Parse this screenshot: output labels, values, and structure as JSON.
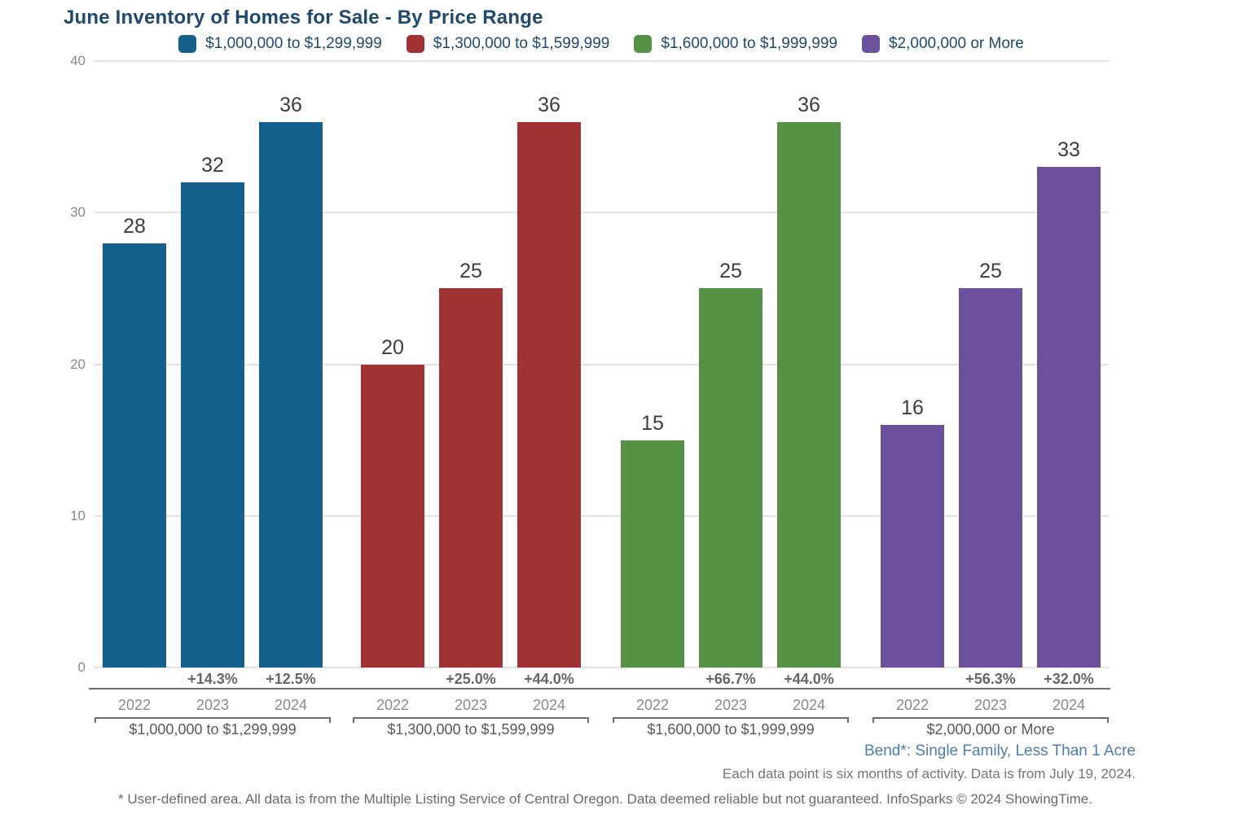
{
  "title": "June Inventory of Homes for Sale - By Price Range",
  "chart_data": {
    "type": "bar",
    "title": "June Inventory of Homes for Sale - By Price Range",
    "categories": [
      "2022",
      "2023",
      "2024"
    ],
    "series": [
      {
        "name": "$1,000,000 to $1,299,999",
        "color": "#15618E",
        "values": [
          28,
          32,
          36
        ],
        "pct_change": [
          "",
          "+14.3%",
          "+12.5%"
        ]
      },
      {
        "name": "$1,300,000 to $1,599,999",
        "color": "#A13234",
        "values": [
          20,
          25,
          36
        ],
        "pct_change": [
          "",
          "+25.0%",
          "+44.0%"
        ]
      },
      {
        "name": "$1,600,000 to $1,999,999",
        "color": "#569245",
        "values": [
          15,
          25,
          36
        ],
        "pct_change": [
          "",
          "+66.7%",
          "+44.0%"
        ]
      },
      {
        "name": "$2,000,000 or More",
        "color": "#6C4F9D",
        "values": [
          16,
          25,
          33
        ],
        "pct_change": [
          "",
          "+56.3%",
          "+32.0%"
        ]
      }
    ],
    "ylim": [
      0,
      40
    ],
    "yticks": [
      0,
      10,
      20,
      30,
      40
    ],
    "grid": "horizontal",
    "legend_position": "top"
  },
  "footer": {
    "area_label": "Bend*: Single Family, Less Than 1 Acre",
    "data_note": "Each data point is six months of activity. Data is from July 19, 2024.",
    "disclaimer": "* User-defined area. All data is from the Multiple Listing Service of Central Oregon. Data deemed reliable but not guaranteed. InfoSparks © 2024 ShowingTime."
  },
  "colors": {
    "title_text": "#1F4A6E",
    "legend_text": "#1D4A70",
    "axis_text": "#8A8A8A",
    "value_label_text": "#3E3E3E",
    "pct_text": "#666666",
    "group_label_text": "#5A5A5A",
    "gridline": "#E2E2E2",
    "separator_line": "#707070",
    "bracket_line": "#6E6E6E",
    "area_label_text": "#4C7DAD",
    "note_text": "#757575"
  }
}
